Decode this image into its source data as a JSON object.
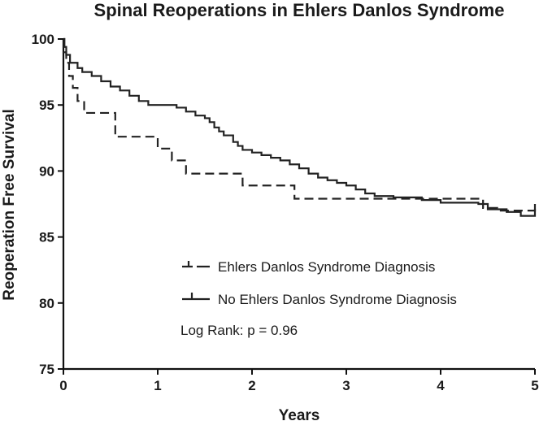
{
  "chart_data": {
    "type": "line",
    "subtype": "kaplan-meier-step",
    "title": "Spinal Reoperations in Ehlers Danlos Syndrome",
    "xlabel": "Years",
    "ylabel": "Reoperation Free Survival",
    "xlim": [
      0,
      5
    ],
    "ylim": [
      75,
      100
    ],
    "x_ticks": [
      0,
      1,
      2,
      3,
      4,
      5
    ],
    "y_ticks": [
      75,
      80,
      85,
      90,
      95,
      100
    ],
    "grid": false,
    "legend_position": "bottom-center",
    "annotation": "Log Rank: p = 0.96",
    "series": [
      {
        "name": "Ehlers Danlos Syndrome Diagnosis",
        "style": "dashed",
        "color": "#222222",
        "steps": [
          [
            0,
            100
          ],
          [
            0.01,
            99.0
          ],
          [
            0.03,
            98.2
          ],
          [
            0.06,
            97.2
          ],
          [
            0.1,
            96.3
          ],
          [
            0.15,
            95.3
          ],
          [
            0.22,
            94.4
          ],
          [
            0.55,
            92.6
          ],
          [
            1.0,
            91.7
          ],
          [
            1.15,
            90.8
          ],
          [
            1.3,
            89.8
          ],
          [
            1.9,
            88.9
          ],
          [
            2.45,
            87.9
          ],
          [
            4.45,
            87.2
          ],
          [
            4.6,
            87.0
          ],
          [
            5.0,
            87.5
          ]
        ],
        "end_x": 5.0
      },
      {
        "name": "No Ehlers Danlos Syndrome Diagnosis",
        "style": "solid",
        "color": "#222222",
        "steps": [
          [
            0,
            100
          ],
          [
            0.01,
            99.4
          ],
          [
            0.03,
            98.8
          ],
          [
            0.07,
            98.2
          ],
          [
            0.15,
            97.8
          ],
          [
            0.2,
            97.5
          ],
          [
            0.3,
            97.2
          ],
          [
            0.4,
            96.8
          ],
          [
            0.5,
            96.4
          ],
          [
            0.6,
            96.1
          ],
          [
            0.7,
            95.7
          ],
          [
            0.8,
            95.3
          ],
          [
            0.9,
            95.0
          ],
          [
            1.2,
            94.8
          ],
          [
            1.3,
            94.5
          ],
          [
            1.4,
            94.2
          ],
          [
            1.5,
            94.0
          ],
          [
            1.55,
            93.7
          ],
          [
            1.6,
            93.3
          ],
          [
            1.65,
            93.0
          ],
          [
            1.7,
            92.7
          ],
          [
            1.8,
            92.2
          ],
          [
            1.85,
            91.9
          ],
          [
            1.9,
            91.6
          ],
          [
            2.0,
            91.4
          ],
          [
            2.1,
            91.2
          ],
          [
            2.2,
            91.0
          ],
          [
            2.3,
            90.8
          ],
          [
            2.4,
            90.5
          ],
          [
            2.5,
            90.2
          ],
          [
            2.6,
            89.8
          ],
          [
            2.7,
            89.5
          ],
          [
            2.8,
            89.3
          ],
          [
            2.9,
            89.1
          ],
          [
            3.0,
            88.9
          ],
          [
            3.1,
            88.6
          ],
          [
            3.2,
            88.3
          ],
          [
            3.3,
            88.1
          ],
          [
            3.5,
            88.0
          ],
          [
            3.8,
            87.8
          ],
          [
            4.0,
            87.6
          ],
          [
            4.4,
            87.5
          ],
          [
            4.5,
            87.1
          ],
          [
            4.7,
            86.9
          ],
          [
            4.85,
            86.6
          ],
          [
            5.0,
            87.5
          ]
        ],
        "end_x": 5.0
      }
    ]
  }
}
